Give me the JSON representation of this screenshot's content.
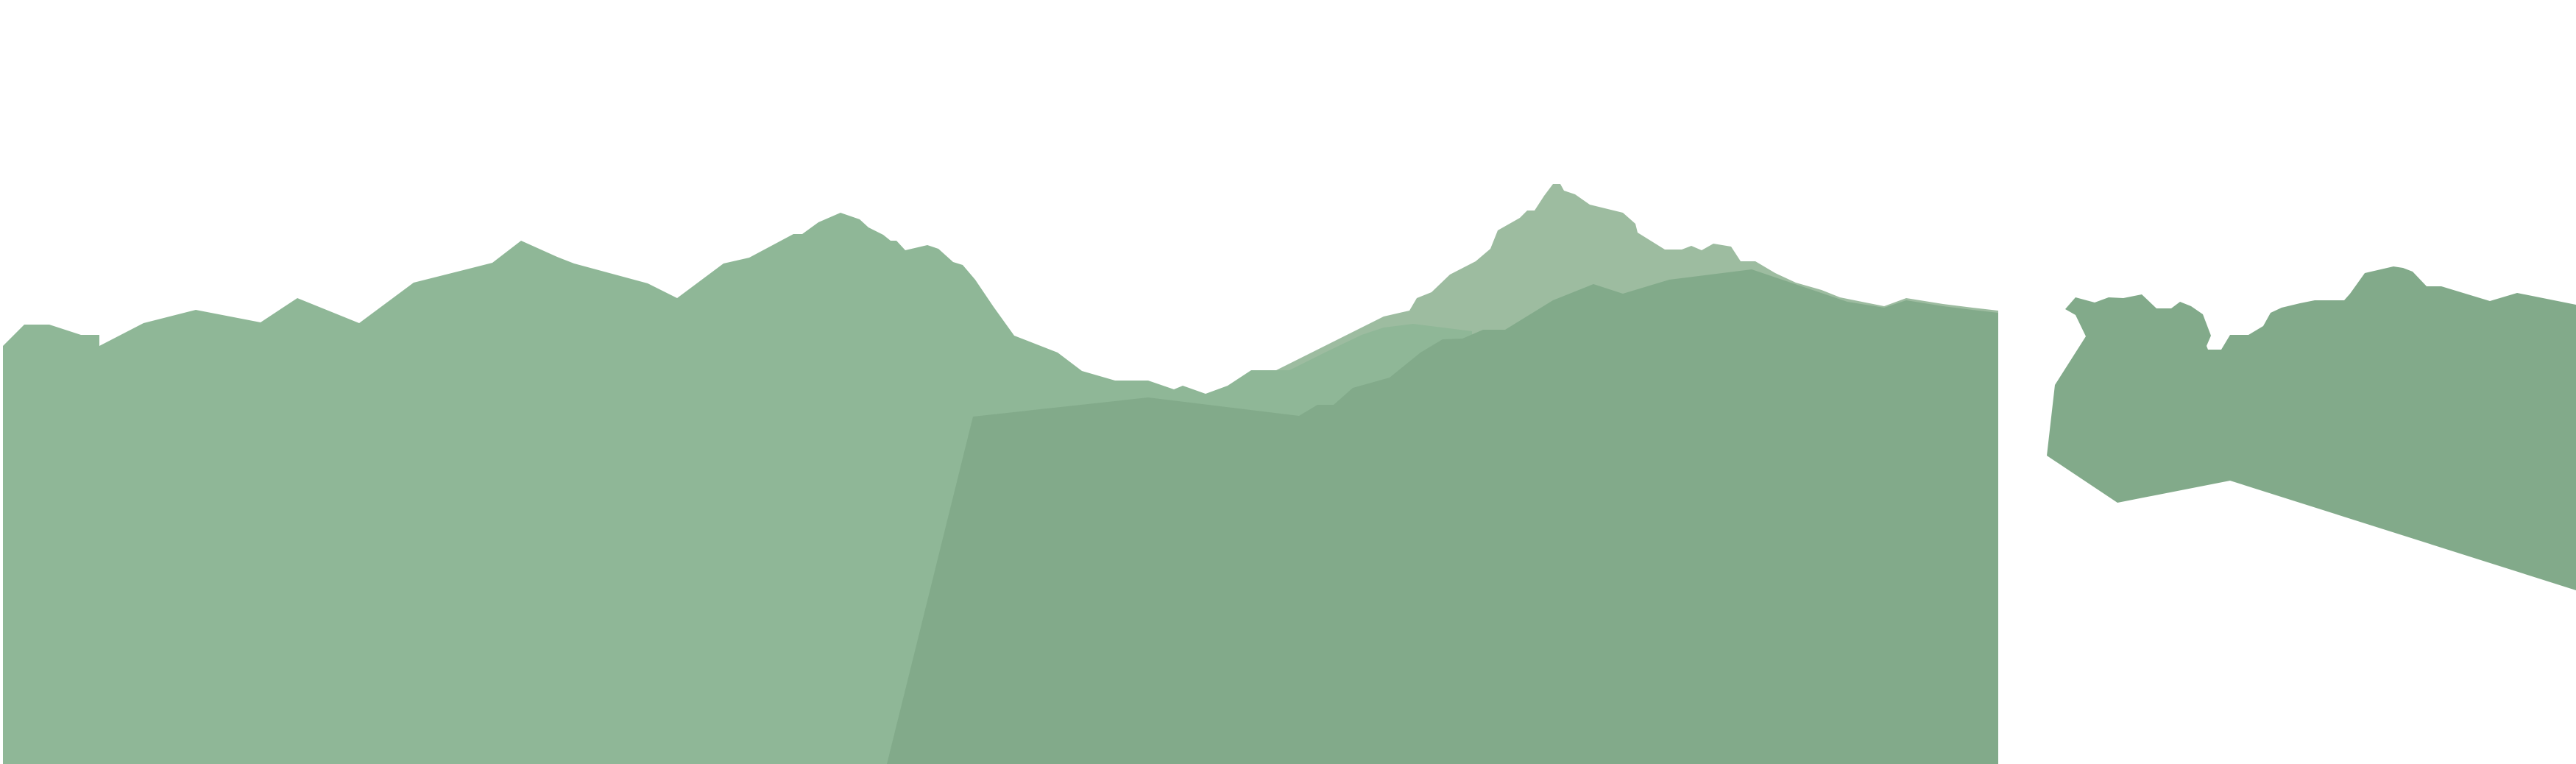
{
  "colors": {
    "background": "#ffffff",
    "mountain_far": "#9dbca0",
    "mountain_back": "#8fb797",
    "mountain_front": "#82aa8a"
  }
}
